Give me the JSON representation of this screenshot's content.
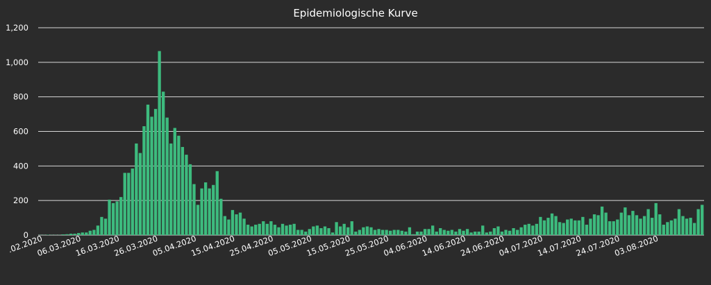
{
  "chart_data": {
    "type": "bar",
    "title": "Epidemiologische Kurve",
    "xlabel": "",
    "ylabel": "",
    "start_date": "2020-02-25",
    "ylim": [
      0,
      1200
    ],
    "y_ticks": [
      0,
      200,
      400,
      600,
      800,
      1000,
      1200
    ],
    "y_tick_labels": [
      "0",
      "200",
      "400",
      "600",
      "800",
      "1,000",
      "1,200"
    ],
    "x_tick_labels": [
      ".02.2020",
      "06.03.2020",
      "16.03.2020",
      "26.03.2020",
      "05.04.2020",
      "15.04.2020",
      "25.04.2020",
      "05.05.2020",
      "15.05.2020",
      "25.05.2020",
      "04.06.2020",
      "14.06.2020",
      "24.06.2020",
      "04.07.2020",
      "14.07.2020",
      "24.07.2020",
      "03.08.2020"
    ],
    "x_tick_dates": [
      "2020-02-25",
      "2020-03-06",
      "2020-03-16",
      "2020-03-26",
      "2020-04-05",
      "2020-04-15",
      "2020-04-25",
      "2020-05-05",
      "2020-05-15",
      "2020-05-25",
      "2020-06-04",
      "2020-06-14",
      "2020-06-24",
      "2020-07-04",
      "2020-07-14",
      "2020-07-24",
      "2020-08-03"
    ],
    "grid": true,
    "legend": "none",
    "bar_color": "#3dbb7e",
    "values": [
      1,
      1,
      2,
      1,
      1,
      1,
      4,
      5,
      8,
      8,
      12,
      15,
      15,
      25,
      30,
      55,
      105,
      95,
      205,
      185,
      195,
      220,
      360,
      360,
      385,
      530,
      475,
      630,
      755,
      685,
      730,
      1065,
      830,
      680,
      530,
      620,
      575,
      510,
      465,
      410,
      295,
      175,
      270,
      305,
      270,
      290,
      370,
      210,
      110,
      90,
      145,
      120,
      130,
      95,
      60,
      50,
      60,
      65,
      80,
      65,
      80,
      60,
      45,
      65,
      55,
      60,
      65,
      30,
      30,
      20,
      35,
      50,
      55,
      40,
      50,
      40,
      15,
      75,
      50,
      65,
      45,
      80,
      20,
      30,
      45,
      50,
      45,
      30,
      35,
      30,
      30,
      25,
      30,
      30,
      25,
      20,
      45,
      5,
      20,
      20,
      35,
      35,
      55,
      20,
      40,
      30,
      25,
      30,
      20,
      35,
      25,
      35,
      15,
      20,
      20,
      55,
      15,
      20,
      40,
      50,
      20,
      30,
      25,
      40,
      30,
      45,
      60,
      65,
      55,
      65,
      105,
      85,
      100,
      125,
      110,
      75,
      70,
      90,
      95,
      85,
      85,
      105,
      60,
      95,
      120,
      115,
      165,
      130,
      80,
      80,
      90,
      130,
      160,
      115,
      140,
      115,
      95,
      110,
      150,
      100,
      185,
      120,
      60,
      75,
      85,
      95,
      150,
      110,
      95,
      100,
      70,
      150,
      175
    ]
  }
}
